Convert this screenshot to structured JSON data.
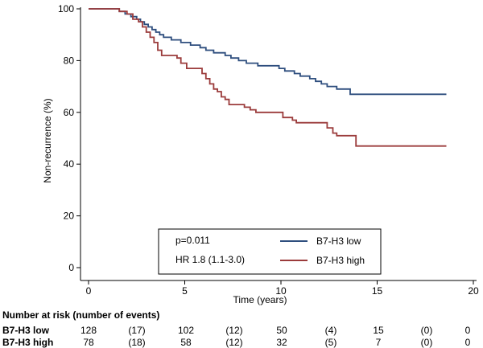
{
  "chart_data": {
    "type": "line",
    "subtype": "kaplan-meier",
    "xlabel": "Time (years)",
    "ylabel": "Non-recurrence (%)",
    "xlim": [
      0,
      20
    ],
    "ylim": [
      0,
      100
    ],
    "xticks": [
      "0",
      "5",
      "10",
      "15",
      "20"
    ],
    "yticks": [
      "0",
      "20",
      "40",
      "60",
      "80",
      "100"
    ],
    "grid": false,
    "legend_position": "bottom-center",
    "annotations": [
      "p=0.011",
      "HR 1.8 (1.1-3.0)"
    ],
    "series": [
      {
        "name": "B7-H3 low",
        "color": "#2e4e7e",
        "step_points": [
          [
            0,
            100
          ],
          [
            1.6,
            99
          ],
          [
            1.9,
            98
          ],
          [
            2.2,
            97
          ],
          [
            2.5,
            96
          ],
          [
            2.7,
            95
          ],
          [
            2.9,
            94
          ],
          [
            3.1,
            93
          ],
          [
            3.3,
            92
          ],
          [
            3.5,
            91
          ],
          [
            3.7,
            90
          ],
          [
            3.9,
            89
          ],
          [
            4.3,
            88
          ],
          [
            4.8,
            87
          ],
          [
            5.3,
            86
          ],
          [
            5.8,
            85
          ],
          [
            6.1,
            84
          ],
          [
            6.5,
            83
          ],
          [
            7.1,
            82
          ],
          [
            7.4,
            81
          ],
          [
            7.8,
            80
          ],
          [
            8.2,
            79
          ],
          [
            8.8,
            78
          ],
          [
            9.9,
            77
          ],
          [
            10.2,
            76
          ],
          [
            10.7,
            75
          ],
          [
            11.0,
            74
          ],
          [
            11.5,
            73
          ],
          [
            11.8,
            72
          ],
          [
            12.1,
            71
          ],
          [
            12.4,
            70
          ],
          [
            12.9,
            69
          ],
          [
            13.6,
            67
          ],
          [
            18.6,
            67
          ]
        ]
      },
      {
        "name": "B7-H3 high",
        "color": "#9b3b3b",
        "step_points": [
          [
            0,
            100
          ],
          [
            1.6,
            99
          ],
          [
            2.0,
            98
          ],
          [
            2.3,
            96
          ],
          [
            2.6,
            95
          ],
          [
            2.8,
            93
          ],
          [
            3.0,
            91
          ],
          [
            3.2,
            89
          ],
          [
            3.4,
            87
          ],
          [
            3.6,
            84
          ],
          [
            3.8,
            82
          ],
          [
            4.6,
            81
          ],
          [
            4.8,
            79
          ],
          [
            5.1,
            77
          ],
          [
            5.9,
            75
          ],
          [
            6.1,
            73
          ],
          [
            6.3,
            71
          ],
          [
            6.5,
            69
          ],
          [
            6.7,
            68
          ],
          [
            6.9,
            66
          ],
          [
            7.1,
            65
          ],
          [
            7.3,
            63
          ],
          [
            8.1,
            62
          ],
          [
            8.4,
            61
          ],
          [
            8.7,
            60
          ],
          [
            10.1,
            58
          ],
          [
            10.6,
            57
          ],
          [
            10.8,
            56
          ],
          [
            12.4,
            54
          ],
          [
            12.7,
            52
          ],
          [
            12.9,
            51
          ],
          [
            13.9,
            47
          ],
          [
            18.6,
            47
          ]
        ]
      }
    ]
  },
  "risk_table": {
    "title": "Number at risk (number of events)",
    "rows": [
      {
        "group": "B7-H3 low",
        "values": [
          "128",
          "(17)",
          "102",
          "(12)",
          "50",
          "(4)",
          "15",
          "(0)",
          "0"
        ]
      },
      {
        "group": "B7-H3 high",
        "values": [
          "78",
          "(18)",
          "58",
          "(12)",
          "32",
          "(5)",
          "7",
          "(0)",
          "0"
        ]
      }
    ]
  }
}
